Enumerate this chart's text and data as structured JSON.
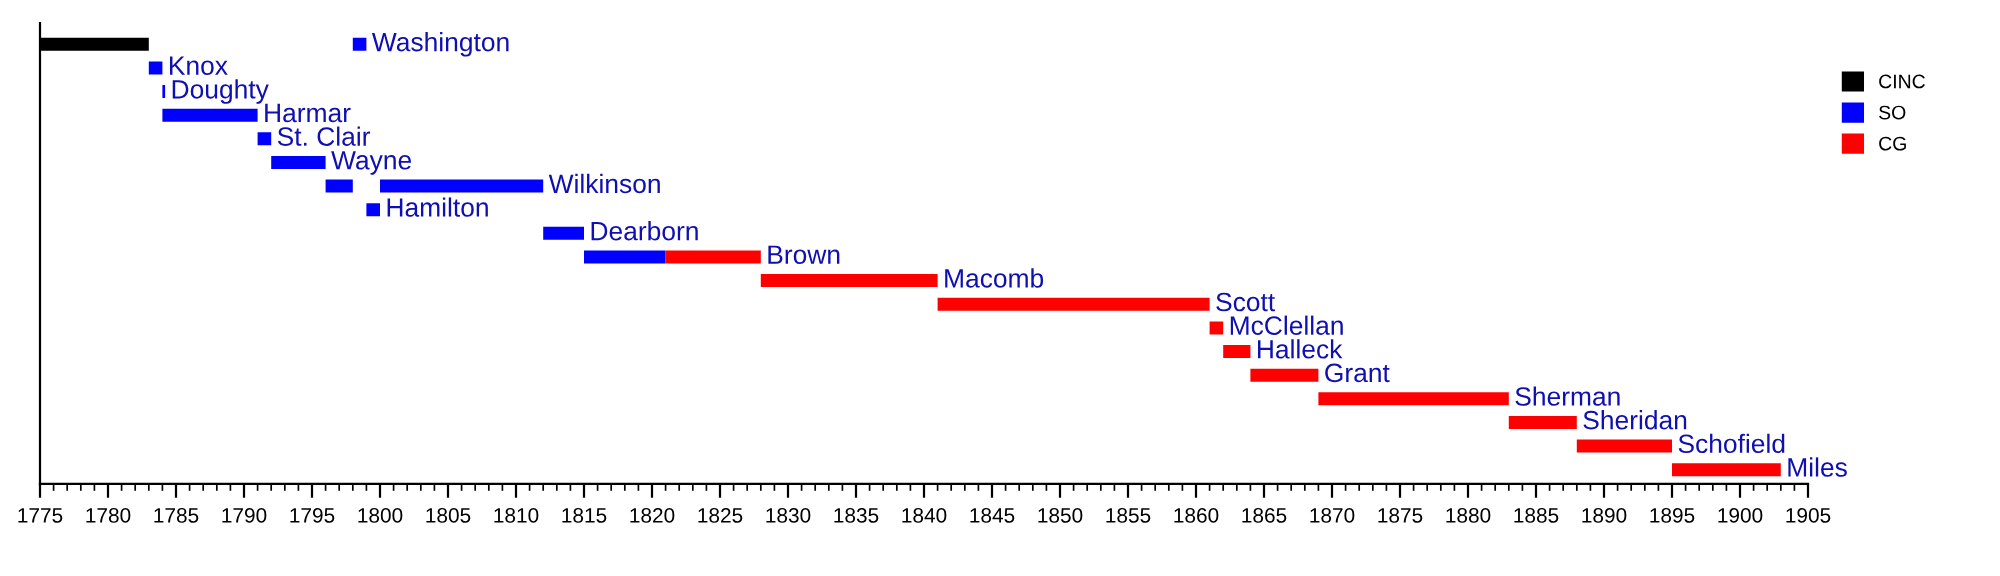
{
  "chart_data": {
    "type": "bar",
    "orientation": "horizontal",
    "categories": [
      "Washington",
      "Knox",
      "Doughty",
      "Harmar",
      "St. Clair",
      "Wayne",
      "Wilkinson",
      "Hamilton",
      "Dearborn",
      "Brown",
      "Macomb",
      "Scott",
      "McClellan",
      "Halleck",
      "Grant",
      "Sherman",
      "Sheridan",
      "Schofield",
      "Miles"
    ],
    "series": [
      {
        "name": "CINC",
        "color": "#000000",
        "base": [
          1775,
          null,
          null,
          null,
          null,
          null,
          null,
          null,
          null,
          null,
          null,
          null,
          null,
          null,
          null,
          null,
          null,
          null,
          null
        ],
        "values": [
          8,
          null,
          null,
          null,
          null,
          null,
          null,
          null,
          null,
          null,
          null,
          null,
          null,
          null,
          null,
          null,
          null,
          null,
          null
        ]
      },
      {
        "name": "SO",
        "color": "#0000ff",
        "base": [
          1798,
          1783,
          1784,
          1784,
          1791,
          1792,
          1800,
          1799,
          1812,
          1815,
          null,
          null,
          null,
          null,
          null,
          null,
          null,
          null,
          null
        ],
        "values": [
          1,
          1,
          0.2,
          7,
          1,
          4,
          12,
          1,
          3,
          6,
          null,
          null,
          null,
          null,
          null,
          null,
          null,
          null,
          null
        ]
      },
      {
        "color": "#0000ff",
        "base": [
          null,
          null,
          null,
          null,
          null,
          null,
          1796,
          null,
          null,
          null,
          null,
          null,
          null,
          null,
          null,
          null,
          null,
          null,
          null
        ],
        "values": [
          null,
          null,
          null,
          null,
          null,
          null,
          2,
          null,
          null,
          null,
          null,
          null,
          null,
          null,
          null,
          null,
          null,
          null,
          null
        ]
      },
      {
        "name": "CG",
        "color": "#ff0000",
        "base": [
          null,
          null,
          null,
          null,
          null,
          null,
          null,
          null,
          null,
          1821,
          1828,
          1841,
          1861,
          1862,
          1864,
          1869,
          1883,
          1888,
          1895
        ],
        "values": [
          null,
          null,
          null,
          null,
          null,
          null,
          null,
          null,
          null,
          7,
          13,
          20,
          1,
          2,
          5,
          14,
          5,
          7,
          8
        ]
      }
    ],
    "xlim": [
      1775,
      1905
    ],
    "xticks": [
      1775,
      1780,
      1785,
      1790,
      1795,
      1800,
      1805,
      1810,
      1815,
      1820,
      1825,
      1830,
      1835,
      1840,
      1845,
      1850,
      1855,
      1860,
      1865,
      1870,
      1875,
      1880,
      1885,
      1890,
      1895,
      1900,
      1905
    ],
    "grid": false,
    "legend": "top right"
  }
}
